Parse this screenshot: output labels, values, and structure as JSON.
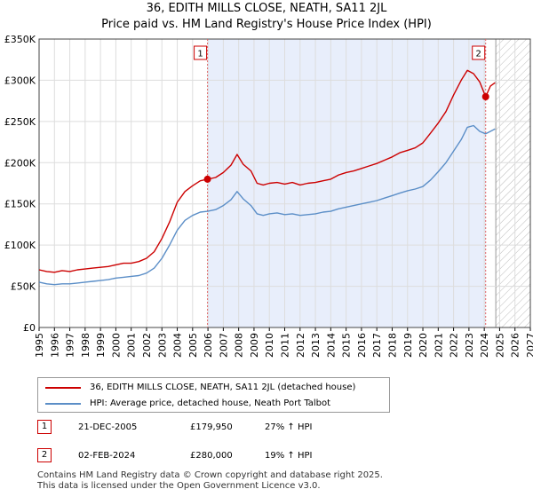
{
  "chart_data": {
    "type": "line",
    "title": "36, EDITH MILLS CLOSE, NEATH, SA11 2JL",
    "subtitle": "Price paid vs. HM Land Registry's House Price Index (HPI)",
    "xlabel": "",
    "ylabel": "",
    "xlim": [
      1995,
      2027
    ],
    "ylim": [
      0,
      350000
    ],
    "x_ticks": [
      "1995",
      "1996",
      "1997",
      "1998",
      "1999",
      "2000",
      "2001",
      "2002",
      "2003",
      "2004",
      "2005",
      "2006",
      "2007",
      "2008",
      "2009",
      "2010",
      "2011",
      "2012",
      "2013",
      "2014",
      "2015",
      "2016",
      "2017",
      "2018",
      "2019",
      "2020",
      "2021",
      "2022",
      "2023",
      "2024",
      "2025",
      "2026",
      "2027"
    ],
    "y_ticks": [
      {
        "value": 0,
        "label": "£0"
      },
      {
        "value": 50000,
        "label": "£50K"
      },
      {
        "value": 100000,
        "label": "£100K"
      },
      {
        "value": 150000,
        "label": "£150K"
      },
      {
        "value": 200000,
        "label": "£200K"
      },
      {
        "value": 250000,
        "label": "£250K"
      },
      {
        "value": 300000,
        "label": "£300K"
      },
      {
        "value": 350000,
        "label": "£350K"
      }
    ],
    "grid": true,
    "highlight_period": [
      2005.97,
      2024.09
    ],
    "forecast_hatch_from": 2024.75,
    "series": [
      {
        "name": "36, EDITH MILLS CLOSE, NEATH, SA11 2JL (detached house)",
        "color": "#cc0000",
        "x": [
          1995,
          1995.5,
          1996,
          1996.5,
          1997,
          1997.5,
          1998,
          1998.5,
          1999,
          1999.5,
          2000,
          2000.5,
          2001,
          2001.5,
          2002,
          2002.5,
          2003,
          2003.5,
          2004,
          2004.5,
          2005,
          2005.5,
          2005.97,
          2006.5,
          2007,
          2007.5,
          2007.9,
          2008.3,
          2008.8,
          2009.2,
          2009.6,
          2010,
          2010.5,
          2011,
          2011.5,
          2012,
          2012.5,
          2013,
          2013.5,
          2014,
          2014.5,
          2015,
          2015.5,
          2016,
          2016.5,
          2017,
          2017.5,
          2018,
          2018.5,
          2019,
          2019.5,
          2020,
          2020.5,
          2021,
          2021.5,
          2022,
          2022.5,
          2022.9,
          2023.3,
          2023.7,
          2024.09,
          2024.4,
          2024.7
        ],
        "values": [
          70000,
          68000,
          67000,
          69000,
          68000,
          70000,
          71000,
          72000,
          73000,
          74000,
          76000,
          78000,
          78000,
          80000,
          84000,
          92000,
          108000,
          128000,
          152000,
          165000,
          172000,
          178000,
          179950,
          182000,
          188000,
          197000,
          210000,
          198000,
          190000,
          175000,
          173000,
          175000,
          176000,
          174000,
          176000,
          173000,
          175000,
          176000,
          178000,
          180000,
          185000,
          188000,
          190000,
          193000,
          196000,
          199000,
          203000,
          207000,
          212000,
          215000,
          218000,
          224000,
          236000,
          248000,
          262000,
          282000,
          300000,
          312000,
          308000,
          298000,
          280000,
          293000,
          297000
        ]
      },
      {
        "name": "HPI: Average price, detached house, Neath Port Talbot",
        "color": "#5b8ec7",
        "x": [
          1995,
          1995.5,
          1996,
          1996.5,
          1997,
          1997.5,
          1998,
          1998.5,
          1999,
          1999.5,
          2000,
          2000.5,
          2001,
          2001.5,
          2002,
          2002.5,
          2003,
          2003.5,
          2004,
          2004.5,
          2005,
          2005.5,
          2005.97,
          2006.5,
          2007,
          2007.5,
          2007.9,
          2008.3,
          2008.8,
          2009.2,
          2009.6,
          2010,
          2010.5,
          2011,
          2011.5,
          2012,
          2012.5,
          2013,
          2013.5,
          2014,
          2014.5,
          2015,
          2015.5,
          2016,
          2016.5,
          2017,
          2017.5,
          2018,
          2018.5,
          2019,
          2019.5,
          2020,
          2020.5,
          2021,
          2021.5,
          2022,
          2022.5,
          2022.9,
          2023.3,
          2023.7,
          2024.09,
          2024.4,
          2024.7
        ],
        "values": [
          55000,
          53000,
          52000,
          53000,
          53000,
          54000,
          55000,
          56000,
          57000,
          58000,
          60000,
          61000,
          62000,
          63000,
          66000,
          72000,
          84000,
          100000,
          118000,
          130000,
          136000,
          140000,
          141000,
          143000,
          148000,
          155000,
          165000,
          156000,
          148000,
          138000,
          136000,
          138000,
          139000,
          137000,
          138000,
          136000,
          137000,
          138000,
          140000,
          141000,
          144000,
          146000,
          148000,
          150000,
          152000,
          154000,
          157000,
          160000,
          163000,
          166000,
          168000,
          171000,
          179000,
          189000,
          200000,
          214000,
          228000,
          243000,
          245000,
          238000,
          235000,
          238000,
          241000
        ]
      }
    ],
    "markers": [
      {
        "label": "1",
        "x": 2005.97,
        "value": 179950
      },
      {
        "label": "2",
        "x": 2024.09,
        "value": 280000
      }
    ]
  },
  "legend": {
    "red_label": "36, EDITH MILLS CLOSE, NEATH, SA11 2JL (detached house)",
    "blue_label": "HPI: Average price, detached house, Neath Port Talbot"
  },
  "transactions": [
    {
      "num": "1",
      "date": "21-DEC-2005",
      "price": "£179,950",
      "hpi": "27% ↑ HPI"
    },
    {
      "num": "2",
      "date": "02-FEB-2024",
      "price": "£280,000",
      "hpi": "19% ↑ HPI"
    }
  ],
  "footer": {
    "line1": "Contains HM Land Registry data © Crown copyright and database right 2025.",
    "line2": "This data is licensed under the Open Government Licence v3.0."
  },
  "colors": {
    "property": "#cc0000",
    "hpi": "#5b8ec7",
    "highlight": "#e8eefb",
    "grid": "#dddddd"
  }
}
